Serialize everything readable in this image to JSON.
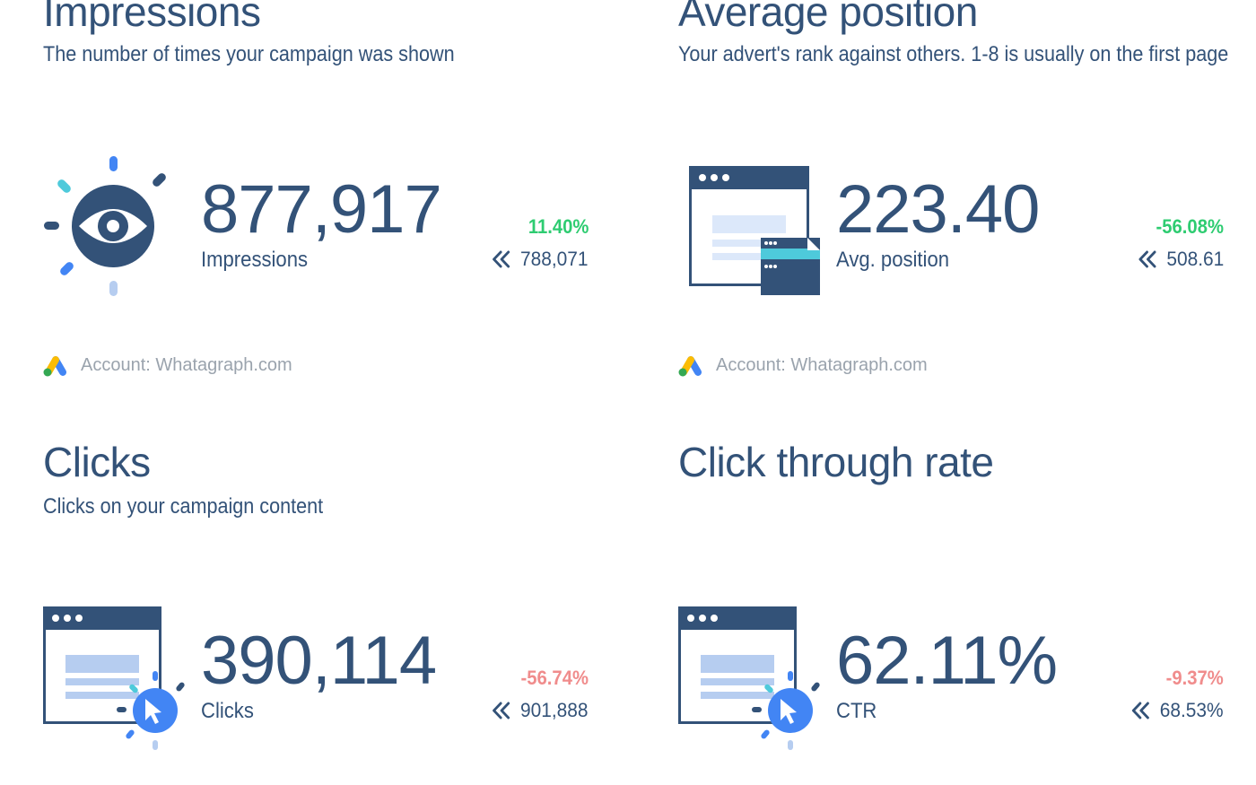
{
  "colors": {
    "primary": "#335278",
    "positive": "#2ecc71",
    "negative": "#f08c8c",
    "muted": "#9aa3ad",
    "accent_blue": "#4285f4",
    "accent_teal": "#4ecadb"
  },
  "widgets": [
    {
      "title": "Impressions",
      "subtitle": "The number of times your campaign was shown",
      "icon": "eye-icon",
      "value": "877,917",
      "label": "Impressions",
      "change": "11.40%",
      "change_trend": "positive",
      "previous": "788,071",
      "account": "Account: Whatagraph.com"
    },
    {
      "title": "Average position",
      "subtitle": "Your advert's rank against others. 1-8 is usually on the first page",
      "icon": "browser-windows-icon",
      "value": "223.40",
      "label": "Avg. position",
      "change": "-56.08%",
      "change_trend": "positive",
      "previous": "508.61",
      "account": "Account: Whatagraph.com"
    },
    {
      "title": "Clicks",
      "subtitle": "Clicks on your campaign content",
      "icon": "browser-click-icon",
      "value": "390,114",
      "label": "Clicks",
      "change": "-56.74%",
      "change_trend": "negative",
      "previous": "901,888"
    },
    {
      "title": "Click through rate",
      "subtitle": "",
      "icon": "browser-click-icon",
      "value": "62.11%",
      "label": "CTR",
      "change": "-9.37%",
      "change_trend": "negative",
      "previous": "68.53%"
    }
  ]
}
